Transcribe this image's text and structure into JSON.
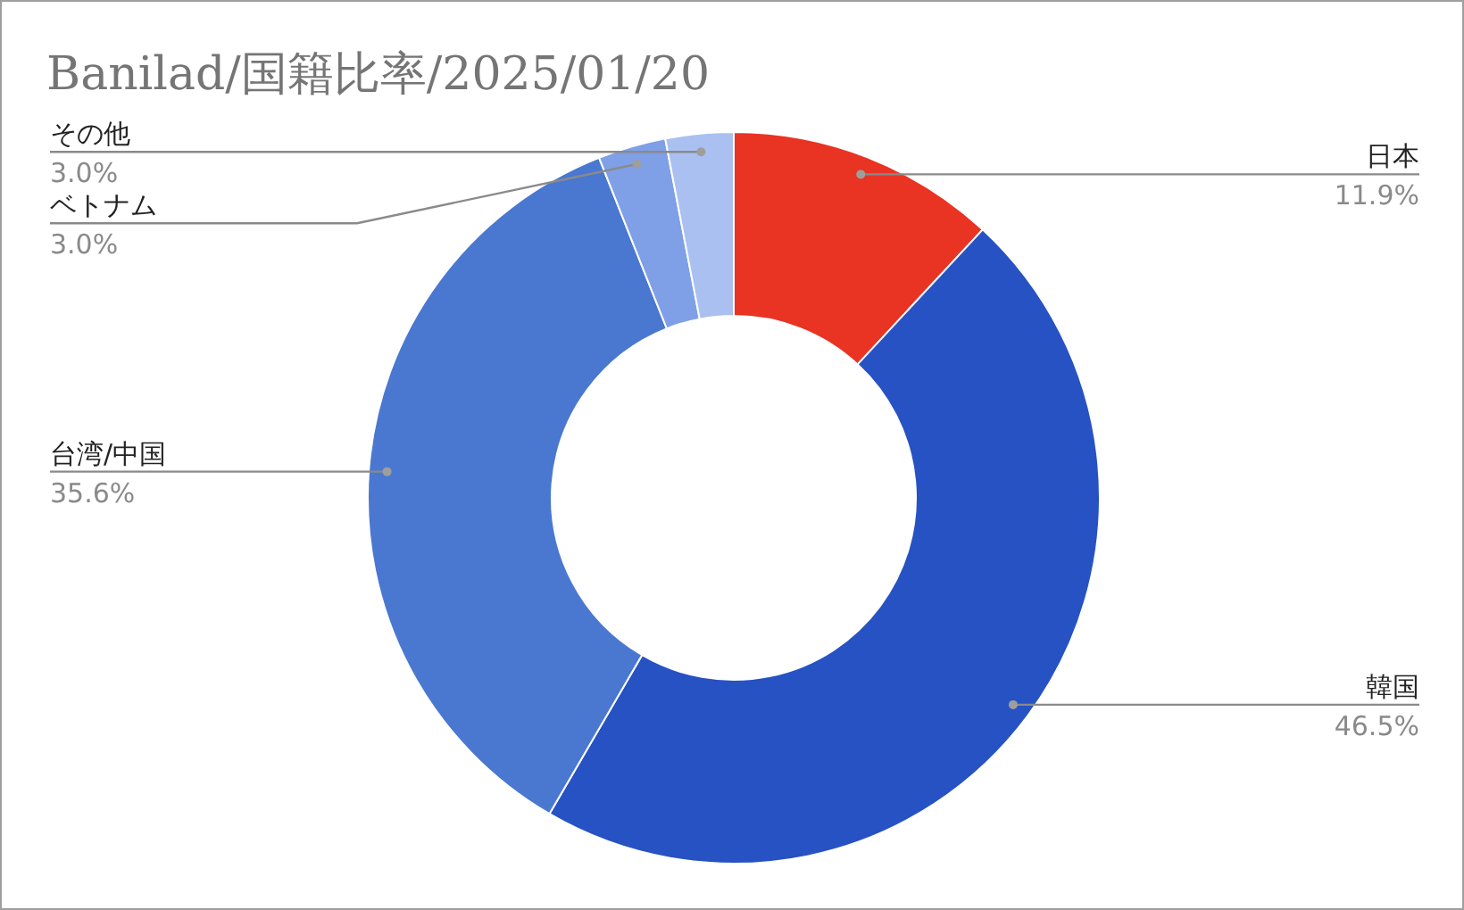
{
  "chart_data": {
    "type": "donut",
    "title": "Banilad/国籍比率/2025/01/20",
    "categories": [
      "日本",
      "韓国",
      "台湾/中国",
      "ベトナム",
      "その他"
    ],
    "values": [
      11.9,
      46.5,
      35.6,
      3.0,
      3.0
    ],
    "colors": [
      "#e93323",
      "#2752c4",
      "#4a78d0",
      "#7fa0e6",
      "#a9c0f0"
    ],
    "value_labels": [
      "11.9%",
      "46.5%",
      "35.6%",
      "3.0%",
      "3.0%"
    ]
  }
}
